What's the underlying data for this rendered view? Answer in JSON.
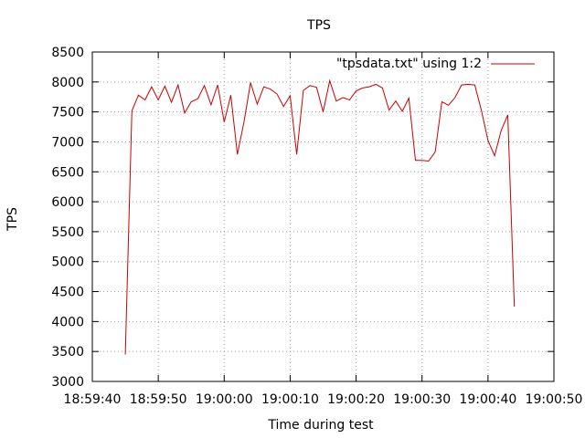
{
  "chart_data": {
    "type": "line",
    "title": "TPS",
    "xlabel": "Time during test",
    "ylabel": "TPS",
    "ylim": [
      3000,
      8500
    ],
    "xlim": [
      "18:59:40",
      "19:00:50"
    ],
    "y_ticks": [
      3000,
      3500,
      4000,
      4500,
      5000,
      5500,
      6000,
      6500,
      7000,
      7500,
      8000,
      8500
    ],
    "x_ticks": [
      "18:59:40",
      "18:59:50",
      "19:00:00",
      "19:00:10",
      "19:00:20",
      "19:00:30",
      "19:00:40",
      "19:00:50"
    ],
    "grid": true,
    "legend_position": "top-right",
    "line_color": "#cc0000",
    "series": [
      {
        "name": "\"tpsdata.txt\" using 1:2",
        "x": [
          "18:59:45",
          "18:59:46",
          "18:59:47",
          "18:59:48",
          "18:59:49",
          "18:59:50",
          "18:59:51",
          "18:59:52",
          "18:59:53",
          "18:59:54",
          "18:59:55",
          "18:59:56",
          "18:59:57",
          "18:59:58",
          "18:59:59",
          "19:00:00",
          "19:00:01",
          "19:00:02",
          "19:00:03",
          "19:00:04",
          "19:00:05",
          "19:00:06",
          "19:00:07",
          "19:00:08",
          "19:00:09",
          "19:00:10",
          "19:00:11",
          "19:00:12",
          "19:00:13",
          "19:00:14",
          "19:00:15",
          "19:00:16",
          "19:00:17",
          "19:00:18",
          "19:00:19",
          "19:00:20",
          "19:00:21",
          "19:00:22",
          "19:00:23",
          "19:00:24",
          "19:00:25",
          "19:00:26",
          "19:00:27",
          "19:00:28",
          "19:00:29",
          "19:00:30",
          "19:00:31",
          "19:00:32",
          "19:00:33",
          "19:00:34",
          "19:00:35",
          "19:00:36",
          "19:00:37",
          "19:00:38",
          "19:00:39",
          "19:00:40",
          "19:00:41",
          "19:00:42",
          "19:00:43",
          "19:00:44",
          "19:00:45"
        ],
        "y": [
          3450,
          7520,
          7780,
          7700,
          7920,
          7700,
          7930,
          7660,
          7950,
          7480,
          7670,
          7720,
          7940,
          7620,
          7950,
          7330,
          7780,
          6790,
          7330,
          7990,
          7630,
          7920,
          7880,
          7800,
          7590,
          7770,
          6790,
          7860,
          7940,
          7910,
          7500,
          8020,
          7680,
          7740,
          7700,
          7850,
          7900,
          7920,
          7960,
          7900,
          7530,
          7680,
          7510,
          7730,
          6690,
          6690,
          6680,
          6830,
          7670,
          7610,
          7740,
          7950,
          7960,
          7950,
          7530,
          7020,
          6770,
          7190,
          7450,
          4250,
          null
        ]
      }
    ]
  }
}
